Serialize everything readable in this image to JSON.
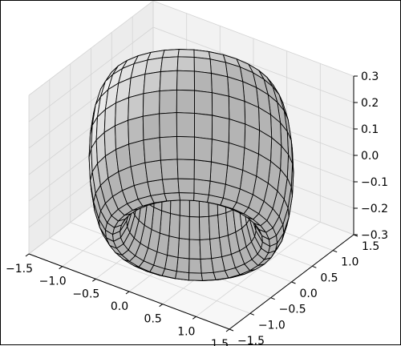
{
  "chart_data": {
    "type": "surface3d",
    "title": "",
    "surface": {
      "shape": "torus",
      "major_radius": 1.0,
      "minor_radius": 0.3,
      "z_scale": 1.0,
      "grid_lines_u": 36,
      "grid_lines_v": 20,
      "face_color": "#e8e8e8",
      "edge_color": "#000000"
    },
    "axes": {
      "x": {
        "range": [
          -1.5,
          1.5
        ],
        "ticks": [
          -1.5,
          -1.0,
          -0.5,
          0.0,
          0.5,
          1.0,
          1.5
        ],
        "tick_labels": [
          "−1.5",
          "−1.0",
          "−0.5",
          "0.0",
          "0.5",
          "1.0",
          "1.5"
        ],
        "label": ""
      },
      "y": {
        "range": [
          -1.5,
          1.5
        ],
        "ticks": [
          -1.5,
          -1.0,
          -0.5,
          0.0,
          0.5,
          1.0,
          1.5
        ],
        "tick_labels": [
          "−1.5",
          "−1.0",
          "−0.5",
          "0.0",
          "0.5",
          "1.0",
          "1.5"
        ],
        "label": ""
      },
      "z": {
        "range": [
          -0.3,
          0.3
        ],
        "ticks": [
          -0.3,
          -0.2,
          -0.1,
          0.0,
          0.1,
          0.2,
          0.3
        ],
        "tick_labels": [
          "−0.3",
          "−0.2",
          "−0.1",
          "0.0",
          "0.1",
          "0.2",
          "0.3"
        ],
        "label": ""
      },
      "grid": true
    },
    "colors": {
      "pane_left": "#ececec",
      "pane_back": "#f2f2f2",
      "pane_floor": "#f7f7f7",
      "grid": "#d4d4d4"
    }
  }
}
